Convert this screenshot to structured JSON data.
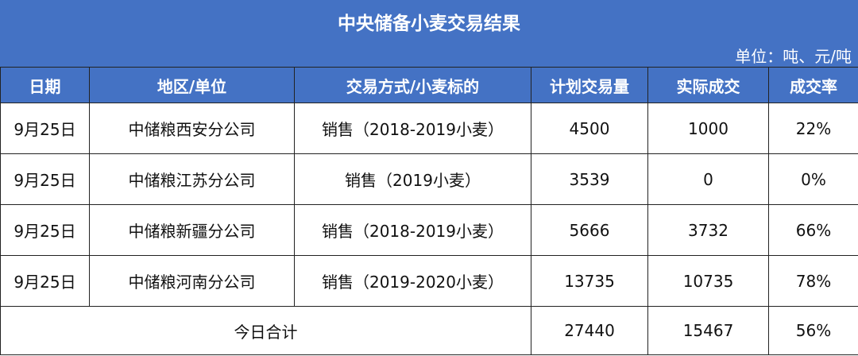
{
  "title": "中央储备小麦交易结果",
  "unit": "单位：吨、元/吨",
  "headers": [
    "日期",
    "地区/单位",
    "交易方式/小麦标的",
    "计划交易量",
    "实际成交",
    "成交率"
  ],
  "rows": [
    [
      "9月25日",
      "中储粮西安分公司",
      "销售（2018-2019小麦）",
      "4500",
      "1000",
      "22%"
    ],
    [
      "9月25日",
      "中储粮江苏分公司",
      "销售（2019小麦）",
      "3539",
      "0",
      "0%"
    ],
    [
      "9月25日",
      "中储粮新疆分公司",
      "销售（2018-2019小麦）",
      "5666",
      "3732",
      "66%"
    ],
    [
      "9月25日",
      "中储粮河南分公司",
      "销售（2019-2020小麦）",
      "13735",
      "10735",
      "78%"
    ]
  ],
  "total": {
    "label": "今日合计",
    "planned": "27440",
    "actual": "15467",
    "rate": "56%"
  },
  "colors": {
    "header_bg": "#4472c4"
  }
}
